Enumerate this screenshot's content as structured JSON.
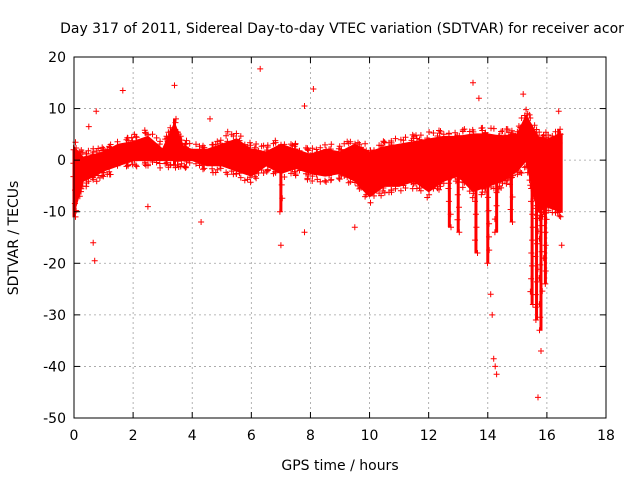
{
  "chart_data": {
    "type": "scatter",
    "title": "Day 317 of 2011, Sidereal Day-to-day VTEC variation (SDTVAR) for receiver acor",
    "xlabel": "GPS time / hours",
    "ylabel": "SDTVAR / TECUs",
    "xlim": [
      0,
      18
    ],
    "ylim": [
      -50,
      20
    ],
    "xticks": [
      0,
      2,
      4,
      6,
      8,
      10,
      12,
      14,
      16,
      18
    ],
    "yticks": [
      -50,
      -40,
      -30,
      -20,
      -10,
      0,
      10,
      20
    ],
    "grid": true,
    "marker": "+",
    "color": "#ff0000",
    "series": [
      {
        "name": "SDTVAR",
        "band_x": [
          0.0,
          0.3,
          0.7,
          1.0,
          1.5,
          2.0,
          2.5,
          3.0,
          3.4,
          3.7,
          4.0,
          4.5,
          5.0,
          5.5,
          6.0,
          6.5,
          7.0,
          7.5,
          8.0,
          8.5,
          9.0,
          9.5,
          10.0,
          10.5,
          11.0,
          11.5,
          12.0,
          12.5,
          13.0,
          13.5,
          14.0,
          14.5,
          15.0,
          15.3,
          15.7,
          16.0,
          16.5
        ],
        "band_upper": [
          2.5,
          0.5,
          1.0,
          1.5,
          3.0,
          3.5,
          4.5,
          2.0,
          7.0,
          2.5,
          2.0,
          2.0,
          3.0,
          4.0,
          2.0,
          1.5,
          3.0,
          2.0,
          1.0,
          2.0,
          1.5,
          3.0,
          1.5,
          2.5,
          3.0,
          3.5,
          4.0,
          4.5,
          4.5,
          5.0,
          5.0,
          4.5,
          5.0,
          8.5,
          4.5,
          4.0,
          5.0
        ],
        "band_lower": [
          -10.0,
          -4.0,
          -3.0,
          -2.0,
          -1.0,
          0.0,
          0.0,
          0.0,
          0.0,
          0.0,
          0.0,
          -1.0,
          -1.0,
          -2.0,
          -3.0,
          -1.0,
          -2.5,
          -1.5,
          -2.5,
          -3.0,
          -2.5,
          -4.0,
          -7.0,
          -5.0,
          -5.0,
          -4.0,
          -6.0,
          -4.0,
          -3.0,
          -6.0,
          -5.0,
          -4.0,
          -2.0,
          0.0,
          -10.0,
          -9.0,
          -10.0
        ],
        "spikes": [
          {
            "x": 0.0,
            "ymin": -11,
            "ymax": 2
          },
          {
            "x": 3.4,
            "ymin": -1,
            "ymax": 8
          },
          {
            "x": 7.0,
            "ymin": -10,
            "ymax": 3
          },
          {
            "x": 12.7,
            "ymin": -13,
            "ymax": 2
          },
          {
            "x": 13.0,
            "ymin": -14,
            "ymax": 3
          },
          {
            "x": 13.6,
            "ymin": -18,
            "ymax": 2
          },
          {
            "x": 14.0,
            "ymin": -20,
            "ymax": 3
          },
          {
            "x": 14.3,
            "ymin": -14,
            "ymax": 4
          },
          {
            "x": 14.8,
            "ymin": -12,
            "ymax": 5
          },
          {
            "x": 15.5,
            "ymin": -28,
            "ymax": 2
          },
          {
            "x": 15.65,
            "ymin": -31,
            "ymax": 1
          },
          {
            "x": 15.8,
            "ymin": -33,
            "ymax": 0
          },
          {
            "x": 15.95,
            "ymin": -24,
            "ymax": 1
          },
          {
            "x": 16.4,
            "ymin": -10,
            "ymax": 6
          }
        ],
        "outliers": [
          [
            1.65,
            13.5
          ],
          [
            3.4,
            14.5
          ],
          [
            6.3,
            17.7
          ],
          [
            7.8,
            10.5
          ],
          [
            8.1,
            13.8
          ],
          [
            0.75,
            9.5
          ],
          [
            0.5,
            6.5
          ],
          [
            0.65,
            -16.0
          ],
          [
            0.7,
            -19.5
          ],
          [
            2.5,
            -9.0
          ],
          [
            4.3,
            -12.0
          ],
          [
            7.0,
            -16.5
          ],
          [
            7.8,
            -14.0
          ],
          [
            9.5,
            -13.0
          ],
          [
            11.0,
            -3.0
          ],
          [
            13.5,
            15.0
          ],
          [
            13.7,
            12.0
          ],
          [
            15.2,
            12.8
          ],
          [
            14.1,
            -26.0
          ],
          [
            14.15,
            -30.0
          ],
          [
            14.2,
            -38.5
          ],
          [
            14.25,
            -40.0
          ],
          [
            14.3,
            -41.5
          ],
          [
            15.8,
            -37.0
          ],
          [
            15.7,
            -46.0
          ],
          [
            16.5,
            -16.5
          ],
          [
            16.4,
            9.5
          ],
          [
            10.5,
            3.5
          ],
          [
            5.2,
            5.5
          ],
          [
            4.6,
            8.0
          ]
        ]
      }
    ]
  }
}
